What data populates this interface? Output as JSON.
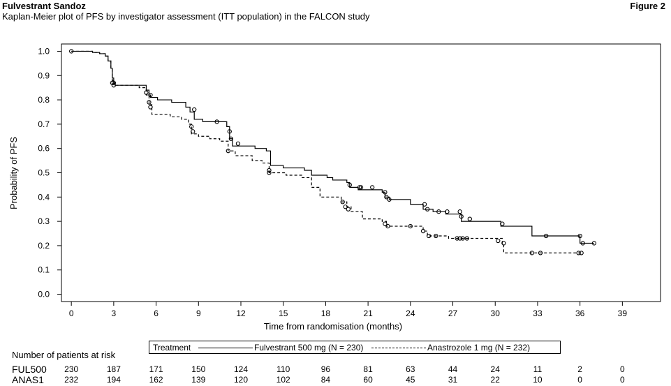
{
  "header": {
    "title": "Fulvestrant Sandoz",
    "subtitle": "Kaplan-Meier plot of PFS by investigator assessment (ITT population) in the FALCON study",
    "figure_label": "Figure 2"
  },
  "legend": {
    "heading": "Treatment",
    "series1": "Fulvestrant 500 mg (N = 230)",
    "series2": "Anastrozole 1 mg (N = 232)"
  },
  "risk_table": {
    "title": "Number of patients at risk",
    "times": [
      0,
      3,
      6,
      9,
      12,
      15,
      18,
      21,
      24,
      27,
      30,
      33,
      36,
      39
    ],
    "rows": [
      {
        "label": "FUL500",
        "values": [
          "230",
          "187",
          "171",
          "150",
          "124",
          "110",
          "96",
          "81",
          "63",
          "44",
          "24",
          "11",
          "2",
          "0"
        ]
      },
      {
        "label": "ANAS1",
        "values": [
          "232",
          "194",
          "162",
          "139",
          "120",
          "102",
          "84",
          "60",
          "45",
          "31",
          "22",
          "10",
          "0",
          "0"
        ]
      }
    ]
  },
  "chart_data": {
    "type": "line",
    "subtype": "kaplan-meier step",
    "xlabel": "Time from randomisation (months)",
    "ylabel": "Probability of PFS",
    "xlim": [
      -0.7,
      41.7
    ],
    "ylim": [
      -0.03,
      1.03
    ],
    "xticks": [
      "0",
      "3",
      "6",
      "9",
      "12",
      "15",
      "18",
      "21",
      "24",
      "27",
      "30",
      "33",
      "36",
      "39"
    ],
    "yticks": [
      "0.0",
      "0.1",
      "0.2",
      "0.3",
      "0.4",
      "0.5",
      "0.6",
      "0.7",
      "0.8",
      "0.9",
      "1.0"
    ],
    "grid": false,
    "legend_position": "below plot",
    "series": [
      {
        "name": "Fulvestrant 500 mg (N = 230)",
        "line_style": "solid",
        "steps": [
          [
            0,
            1.0
          ],
          [
            1.5,
            0.995
          ],
          [
            2.0,
            0.99
          ],
          [
            2.4,
            0.98
          ],
          [
            2.6,
            0.96
          ],
          [
            2.8,
            0.93
          ],
          [
            2.9,
            0.89
          ],
          [
            3.0,
            0.87
          ],
          [
            3.1,
            0.86
          ],
          [
            5.3,
            0.84
          ],
          [
            5.5,
            0.82
          ],
          [
            5.6,
            0.81
          ],
          [
            6.1,
            0.8
          ],
          [
            7.1,
            0.79
          ],
          [
            8.1,
            0.77
          ],
          [
            8.4,
            0.75
          ],
          [
            8.7,
            0.72
          ],
          [
            9.3,
            0.71
          ],
          [
            11.0,
            0.69
          ],
          [
            11.2,
            0.64
          ],
          [
            11.4,
            0.61
          ],
          [
            13.0,
            0.6
          ],
          [
            13.8,
            0.59
          ],
          [
            14.1,
            0.53
          ],
          [
            15.0,
            0.52
          ],
          [
            16.5,
            0.51
          ],
          [
            17.0,
            0.49
          ],
          [
            18.1,
            0.48
          ],
          [
            18.5,
            0.47
          ],
          [
            19.5,
            0.46
          ],
          [
            19.7,
            0.44
          ],
          [
            20.3,
            0.43
          ],
          [
            22.0,
            0.42
          ],
          [
            22.2,
            0.4
          ],
          [
            22.5,
            0.39
          ],
          [
            24.0,
            0.37
          ],
          [
            24.9,
            0.35
          ],
          [
            25.6,
            0.34
          ],
          [
            26.5,
            0.33
          ],
          [
            27.6,
            0.3
          ],
          [
            30.4,
            0.28
          ],
          [
            32.6,
            0.24
          ],
          [
            36.0,
            0.21
          ],
          [
            37.0,
            0.21
          ]
        ],
        "censored": [
          [
            0,
            1.0
          ],
          [
            2.9,
            0.87
          ],
          [
            3.0,
            0.86
          ],
          [
            5.3,
            0.83
          ],
          [
            5.6,
            0.82
          ],
          [
            8.7,
            0.76
          ],
          [
            10.3,
            0.71
          ],
          [
            11.2,
            0.67
          ],
          [
            11.3,
            0.64
          ],
          [
            11.8,
            0.62
          ],
          [
            19.7,
            0.45
          ],
          [
            20.4,
            0.44
          ],
          [
            20.5,
            0.44
          ],
          [
            21.3,
            0.44
          ],
          [
            22.2,
            0.42
          ],
          [
            22.3,
            0.4
          ],
          [
            22.5,
            0.39
          ],
          [
            25.0,
            0.37
          ],
          [
            25.2,
            0.35
          ],
          [
            26.0,
            0.34
          ],
          [
            26.6,
            0.34
          ],
          [
            27.5,
            0.34
          ],
          [
            27.6,
            0.32
          ],
          [
            28.2,
            0.31
          ],
          [
            30.5,
            0.29
          ],
          [
            33.6,
            0.24
          ],
          [
            36.0,
            0.24
          ],
          [
            36.2,
            0.21
          ],
          [
            37.0,
            0.21
          ]
        ]
      },
      {
        "name": "Anastrozole 1 mg (N = 232)",
        "line_style": "dashed",
        "steps": [
          [
            0,
            1.0
          ],
          [
            1.5,
            0.995
          ],
          [
            2.0,
            0.99
          ],
          [
            2.4,
            0.98
          ],
          [
            2.6,
            0.96
          ],
          [
            2.8,
            0.93
          ],
          [
            2.9,
            0.88
          ],
          [
            3.0,
            0.87
          ],
          [
            3.1,
            0.86
          ],
          [
            4.8,
            0.85
          ],
          [
            5.3,
            0.82
          ],
          [
            5.5,
            0.78
          ],
          [
            5.7,
            0.74
          ],
          [
            7.0,
            0.73
          ],
          [
            7.8,
            0.72
          ],
          [
            8.3,
            0.7
          ],
          [
            8.5,
            0.66
          ],
          [
            9.0,
            0.65
          ],
          [
            9.8,
            0.64
          ],
          [
            10.5,
            0.63
          ],
          [
            11.1,
            0.59
          ],
          [
            11.6,
            0.57
          ],
          [
            12.8,
            0.55
          ],
          [
            13.5,
            0.54
          ],
          [
            14.0,
            0.5
          ],
          [
            15.2,
            0.49
          ],
          [
            16.3,
            0.48
          ],
          [
            17.0,
            0.44
          ],
          [
            17.6,
            0.4
          ],
          [
            19.1,
            0.38
          ],
          [
            19.5,
            0.36
          ],
          [
            19.8,
            0.34
          ],
          [
            20.6,
            0.31
          ],
          [
            22.0,
            0.3
          ],
          [
            22.3,
            0.28
          ],
          [
            24.9,
            0.26
          ],
          [
            25.2,
            0.24
          ],
          [
            26.7,
            0.23
          ],
          [
            27.6,
            0.23
          ],
          [
            30.5,
            0.21
          ],
          [
            30.6,
            0.17
          ],
          [
            36.2,
            0.17
          ]
        ],
        "censored": [
          [
            3.0,
            0.87
          ],
          [
            5.5,
            0.79
          ],
          [
            5.6,
            0.77
          ],
          [
            8.5,
            0.69
          ],
          [
            8.6,
            0.67
          ],
          [
            11.1,
            0.59
          ],
          [
            14.0,
            0.51
          ],
          [
            14.0,
            0.5
          ],
          [
            19.2,
            0.38
          ],
          [
            19.4,
            0.36
          ],
          [
            19.6,
            0.35
          ],
          [
            22.2,
            0.29
          ],
          [
            22.4,
            0.28
          ],
          [
            24.0,
            0.28
          ],
          [
            24.9,
            0.26
          ],
          [
            25.3,
            0.24
          ],
          [
            25.8,
            0.24
          ],
          [
            27.3,
            0.23
          ],
          [
            27.5,
            0.23
          ],
          [
            27.7,
            0.23
          ],
          [
            28.0,
            0.23
          ],
          [
            30.2,
            0.22
          ],
          [
            30.6,
            0.21
          ],
          [
            32.6,
            0.17
          ],
          [
            33.2,
            0.17
          ],
          [
            35.9,
            0.17
          ],
          [
            36.1,
            0.17
          ]
        ]
      }
    ]
  }
}
